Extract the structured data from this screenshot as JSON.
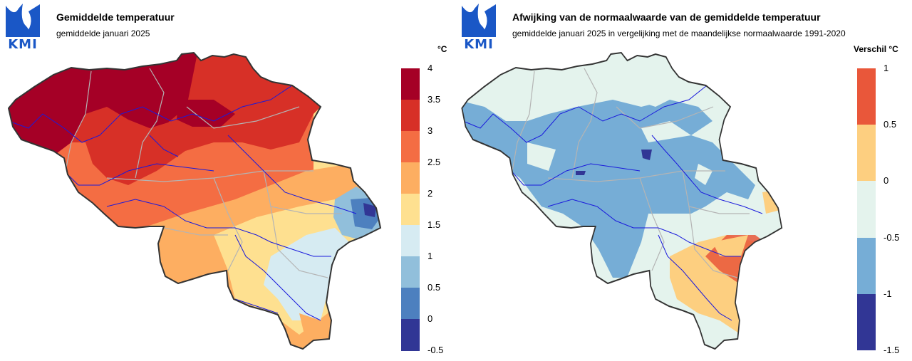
{
  "logo": {
    "text": "KMI",
    "color": "#1a57c6"
  },
  "left_panel": {
    "title": "Gemiddelde temperatuur",
    "subtitle": "gemiddelde januari 2025",
    "unit": "°C",
    "legend": {
      "ticks": [
        "4",
        "3.5",
        "3",
        "2.5",
        "2",
        "1.5",
        "1",
        "0.5",
        "0",
        "-0.5"
      ],
      "colors": [
        "#a50026",
        "#d73027",
        "#f46d43",
        "#fdae61",
        "#fee090",
        "#d6ebf2",
        "#91bfdb",
        "#4d80bf",
        "#313695"
      ]
    }
  },
  "right_panel": {
    "title": "Afwijking van de normaalwaarde van de gemiddelde temperatuur",
    "subtitle": "gemiddelde januari 2025 in vergelijking met de maandelijkse normaalwaarde 1991-2020",
    "unit": "Verschil °C",
    "legend": {
      "ticks": [
        "1",
        "0.5",
        "0",
        "-0.5",
        "-1",
        "-1.5"
      ],
      "colors": [
        "#e9573a",
        "#fdcf80",
        "#e4f3ed",
        "#76add6",
        "#313695"
      ]
    }
  }
}
